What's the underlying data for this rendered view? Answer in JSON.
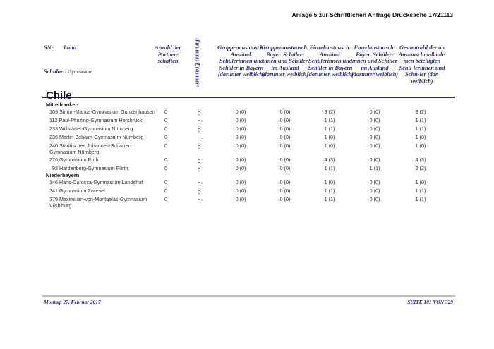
{
  "doc_title": "Anlage 5 zur Schriftlichen Anfrage Drucksache 17/21113",
  "header": {
    "snr": "SNr.",
    "land": "Land",
    "schulart_label": "Schulart:",
    "schulart_value": "Gymnasium",
    "anzahl": "Anzahl der Partner-schaften",
    "erasmus": "darunter: Erasmus+",
    "col3": "Gruppenaustausch: Ausländ. Schülerinnen und Schüler in Bayern (darunter weiblich)",
    "col4": "Gruppenaustausch: Bayer. Schüler-innen und Schüler im Ausland (darunter weiblich)",
    "col5": "Einzelaustausch: Ausländ. Schülerinnen und Schüler in Bayern (darunter weiblich)",
    "col6": "Einzelaustausch: Bayer. Schüler-innen und Schüler im Ausland (darunter weiblich)",
    "col7": "Gesamtzahl der an Austauschmaßnah-men beteiligten Schü-lerinnen und Schü-ler (dar. weiblich)"
  },
  "country": "Chile",
  "regions": [
    {
      "name": "Mittelfranken",
      "rows": [
        {
          "school": "109 Simon-Marius-Gymnasium Gunzenhausen",
          "v": [
            "0",
            "0",
            "0 (0)",
            "0 (0)",
            "3 (2)",
            "0 (0)",
            "3 (2)"
          ]
        },
        {
          "school": "112 Paul-Pfinzing-Gymnasium Hersbruck",
          "v": [
            "0",
            "0",
            "0 (0)",
            "0 (0)",
            "1 (1)",
            "0 (0)",
            "1 (1)"
          ]
        },
        {
          "school": "233 Willstätter-Gymnasium Nürnberg",
          "v": [
            "0",
            "0",
            "0 (0)",
            "0 (0)",
            "1 (1)",
            "0 (0)",
            "1 (1)"
          ]
        },
        {
          "school": "236 Martin-Behaim-Gymnasium Nürnberg",
          "v": [
            "0",
            "0",
            "0 (0)",
            "0 (0)",
            "1 (0)",
            "0 (0)",
            "1 (0)"
          ]
        },
        {
          "school": "240 Städtisches Johannes-Scharrer-Gymnasium Nürnberg",
          "v": [
            "0",
            "0",
            "0 (0)",
            "0 (0)",
            "1 (0)",
            "0 (0)",
            "1 (0)"
          ]
        },
        {
          "school": "276 Gymnasium Roth",
          "v": [
            "0",
            "0",
            "0 (0)",
            "0 (0)",
            "4 (3)",
            "0 (0)",
            "4 (3)"
          ]
        },
        {
          "school": "92 Hardenberg-Gymnasium Fürth",
          "v": [
            "0",
            "0",
            "0 (0)",
            "0 (0)",
            "1 (1)",
            "1 (1)",
            "2 (2)"
          ]
        }
      ]
    },
    {
      "name": "Niederbayern",
      "rows": [
        {
          "school": "146 Hans-Carossa-Gymnasium Landshut",
          "v": [
            "0",
            "0",
            "0 (0)",
            "0 (0)",
            "1 (0)",
            "0 (0)",
            "1 (0)"
          ]
        },
        {
          "school": "341 Gymnasium Zwiesel",
          "v": [
            "0",
            "0",
            "0 (0)",
            "0 (0)",
            "1 (1)",
            "0 (0)",
            "1 (1)"
          ]
        },
        {
          "school": "379 Maximilian-von-Montgelas-Gymnasium Vilsbiburg",
          "v": [
            "0",
            "0",
            "0 (0)",
            "0 (0)",
            "1 (1)",
            "0 (0)",
            "1 (1)"
          ]
        }
      ]
    }
  ],
  "footer": {
    "date": "Montag, 27. Februar 2017",
    "page": "SEITE 101 VON 329"
  }
}
